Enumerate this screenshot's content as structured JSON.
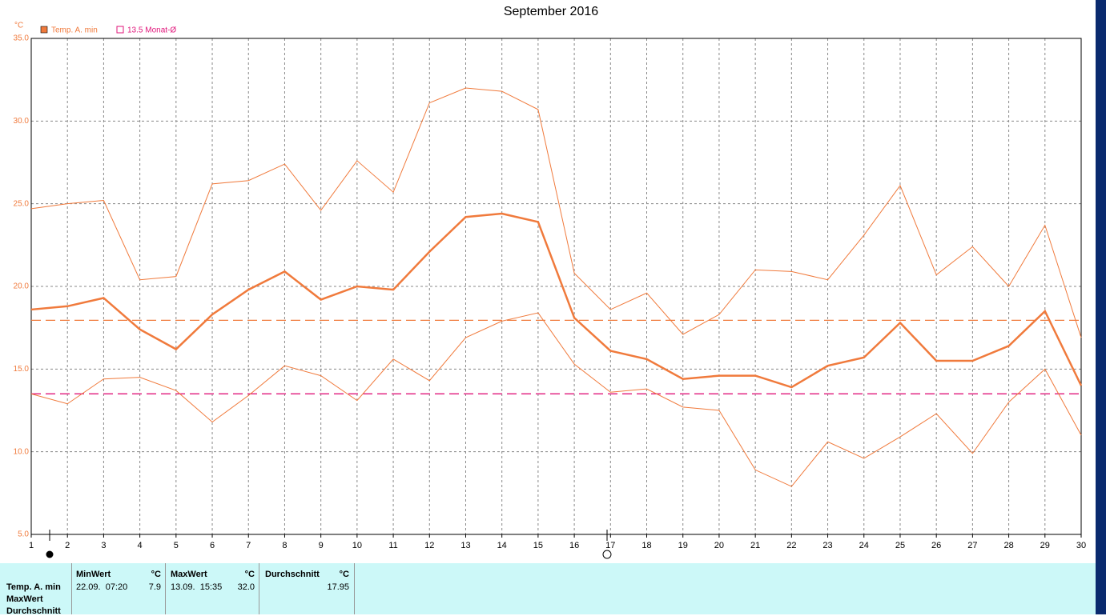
{
  "chart_data": {
    "type": "line",
    "title": "September 2016",
    "y_unit": "°C",
    "x": [
      1,
      2,
      3,
      4,
      5,
      6,
      7,
      8,
      9,
      10,
      11,
      12,
      13,
      14,
      15,
      16,
      17,
      18,
      19,
      20,
      21,
      22,
      23,
      24,
      25,
      26,
      27,
      28,
      29,
      30
    ],
    "xlim": [
      1,
      30
    ],
    "ylim": [
      5,
      35
    ],
    "yticks": [
      {
        "value": 5,
        "label": "5.0"
      },
      {
        "value": 10,
        "label": "10.0"
      },
      {
        "value": 15,
        "label": "15.0"
      },
      {
        "value": 20,
        "label": "20.0"
      },
      {
        "value": 25,
        "label": "25.0"
      },
      {
        "value": 30,
        "label": "30.0"
      },
      {
        "value": 35,
        "label": "35.0"
      }
    ],
    "grid": true,
    "series": [
      {
        "name": "Temp. A. min",
        "color": "#f07a3c",
        "values": [
          18.6,
          18.8,
          19.3,
          17.4,
          16.2,
          18.3,
          19.8,
          20.9,
          19.2,
          20.0,
          19.8,
          22.1,
          24.2,
          24.4,
          23.9,
          18.1,
          16.1,
          15.6,
          14.4,
          14.6,
          14.6,
          13.9,
          15.2,
          15.7,
          17.8,
          15.5,
          15.5,
          16.4,
          18.5,
          14.0
        ]
      }
    ],
    "band": {
      "color": "#f07a3c",
      "upper": [
        24.7,
        25.0,
        25.2,
        20.4,
        20.6,
        26.2,
        26.4,
        27.4,
        24.6,
        27.6,
        25.7,
        31.1,
        32.0,
        31.8,
        30.7,
        20.8,
        18.6,
        19.6,
        17.1,
        18.3,
        21.0,
        20.9,
        20.4,
        23.1,
        26.1,
        20.7,
        22.4,
        20.0,
        23.7,
        16.9
      ],
      "lower": [
        13.5,
        12.9,
        14.4,
        14.5,
        13.7,
        11.8,
        13.4,
        15.2,
        14.6,
        13.1,
        15.6,
        14.3,
        16.9,
        17.9,
        18.4,
        15.3,
        13.6,
        13.8,
        12.7,
        12.5,
        8.9,
        7.9,
        10.6,
        9.6,
        10.9,
        12.3,
        9.9,
        13.0,
        15.0,
        11.0
      ]
    },
    "reference_lines": [
      {
        "name": "13.5 Monat-Ø",
        "value": 13.5,
        "color": "#e0157a",
        "legend": true
      },
      {
        "value": 17.95,
        "color": "#f07a3c",
        "legend": false
      }
    ]
  },
  "stats_table": {
    "row_labels": [
      "Temp. A. min",
      "MaxWert",
      "Durchschnitt"
    ],
    "columns": [
      {
        "header": "MinWert",
        "unit": "°C",
        "time": "22.09.  07:20",
        "value": "7.9"
      },
      {
        "header": "MaxWert",
        "unit": "°C",
        "time": "13.09.  15:35",
        "value": "32.0"
      },
      {
        "header": "Durchschnitt",
        "unit": "°C",
        "time": "",
        "value": "17.95"
      }
    ]
  }
}
